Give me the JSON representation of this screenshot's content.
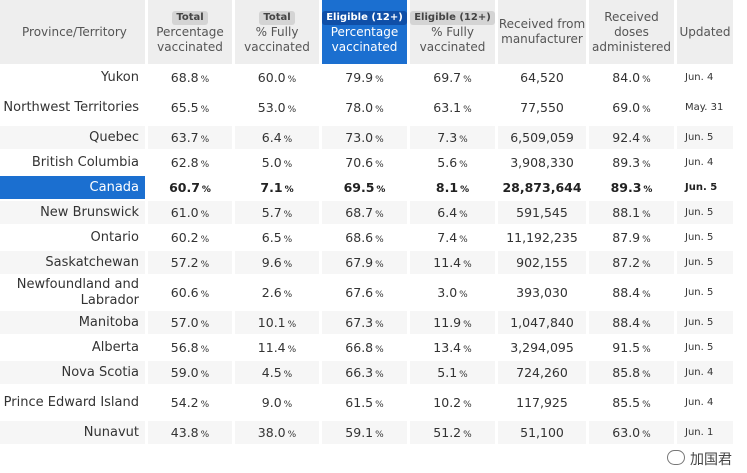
{
  "headers": [
    {
      "badge": "",
      "label": "Province/Territory"
    },
    {
      "badge": "Total",
      "label": "Percentage vaccinated"
    },
    {
      "badge": "Total",
      "label": "% Fully vaccinated"
    },
    {
      "badge": "Eligible (12+)",
      "label": "Percentage vaccinated"
    },
    {
      "badge": "Eligible (12+)",
      "label": "% Fully vaccinated"
    },
    {
      "badge": "",
      "label": "Received from manufacturer"
    },
    {
      "badge": "",
      "label": "Received doses administered"
    },
    {
      "badge": "",
      "label": "Updated"
    }
  ],
  "pct_unit": "%",
  "rows": [
    {
      "province": "Yukon",
      "total_pct": "68.8",
      "total_full": "60.0",
      "elig_pct": "79.9",
      "elig_full": "69.7",
      "received": "64,520",
      "administered": "84.0",
      "updated": "Jun. 4"
    },
    {
      "province": "Northwest Territories",
      "total_pct": "65.5",
      "total_full": "53.0",
      "elig_pct": "78.0",
      "elig_full": "63.1",
      "received": "77,550",
      "administered": "69.0",
      "updated": "May. 31"
    },
    {
      "province": "Quebec",
      "total_pct": "63.7",
      "total_full": "6.4",
      "elig_pct": "73.0",
      "elig_full": "7.3",
      "received": "6,509,059",
      "administered": "92.4",
      "updated": "Jun. 5"
    },
    {
      "province": "British Columbia",
      "total_pct": "62.8",
      "total_full": "5.0",
      "elig_pct": "70.6",
      "elig_full": "5.6",
      "received": "3,908,330",
      "administered": "89.3",
      "updated": "Jun. 4"
    },
    {
      "province": "Canada",
      "total_pct": "60.7",
      "total_full": "7.1",
      "elig_pct": "69.5",
      "elig_full": "8.1",
      "received": "28,873,644",
      "administered": "89.3",
      "updated": "Jun. 5"
    },
    {
      "province": "New Brunswick",
      "total_pct": "61.0",
      "total_full": "5.7",
      "elig_pct": "68.7",
      "elig_full": "6.4",
      "received": "591,545",
      "administered": "88.1",
      "updated": "Jun. 5"
    },
    {
      "province": "Ontario",
      "total_pct": "60.2",
      "total_full": "6.5",
      "elig_pct": "68.6",
      "elig_full": "7.4",
      "received": "11,192,235",
      "administered": "87.9",
      "updated": "Jun. 5"
    },
    {
      "province": "Saskatchewan",
      "total_pct": "57.2",
      "total_full": "9.6",
      "elig_pct": "67.9",
      "elig_full": "11.4",
      "received": "902,155",
      "administered": "87.2",
      "updated": "Jun. 5"
    },
    {
      "province": "Newfoundland and Labrador",
      "total_pct": "60.6",
      "total_full": "2.6",
      "elig_pct": "67.6",
      "elig_full": "3.0",
      "received": "393,030",
      "administered": "88.4",
      "updated": "Jun. 5"
    },
    {
      "province": "Manitoba",
      "total_pct": "57.0",
      "total_full": "10.1",
      "elig_pct": "67.3",
      "elig_full": "11.9",
      "received": "1,047,840",
      "administered": "88.4",
      "updated": "Jun. 5"
    },
    {
      "province": "Alberta",
      "total_pct": "56.8",
      "total_full": "11.4",
      "elig_pct": "66.8",
      "elig_full": "13.4",
      "received": "3,294,095",
      "administered": "91.5",
      "updated": "Jun. 5"
    },
    {
      "province": "Nova Scotia",
      "total_pct": "59.0",
      "total_full": "4.5",
      "elig_pct": "66.3",
      "elig_full": "5.1",
      "received": "724,260",
      "administered": "85.8",
      "updated": "Jun. 4"
    },
    {
      "province": "Prince Edward Island",
      "total_pct": "54.2",
      "total_full": "9.0",
      "elig_pct": "61.5",
      "elig_full": "10.2",
      "received": "117,925",
      "administered": "85.5",
      "updated": "Jun. 4"
    },
    {
      "province": "Nunavut",
      "total_pct": "43.8",
      "total_full": "38.0",
      "elig_pct": "59.1",
      "elig_full": "51.2",
      "received": "51,100",
      "administered": "63.0",
      "updated": "Jun. 1"
    }
  ],
  "watermark": "加国君"
}
